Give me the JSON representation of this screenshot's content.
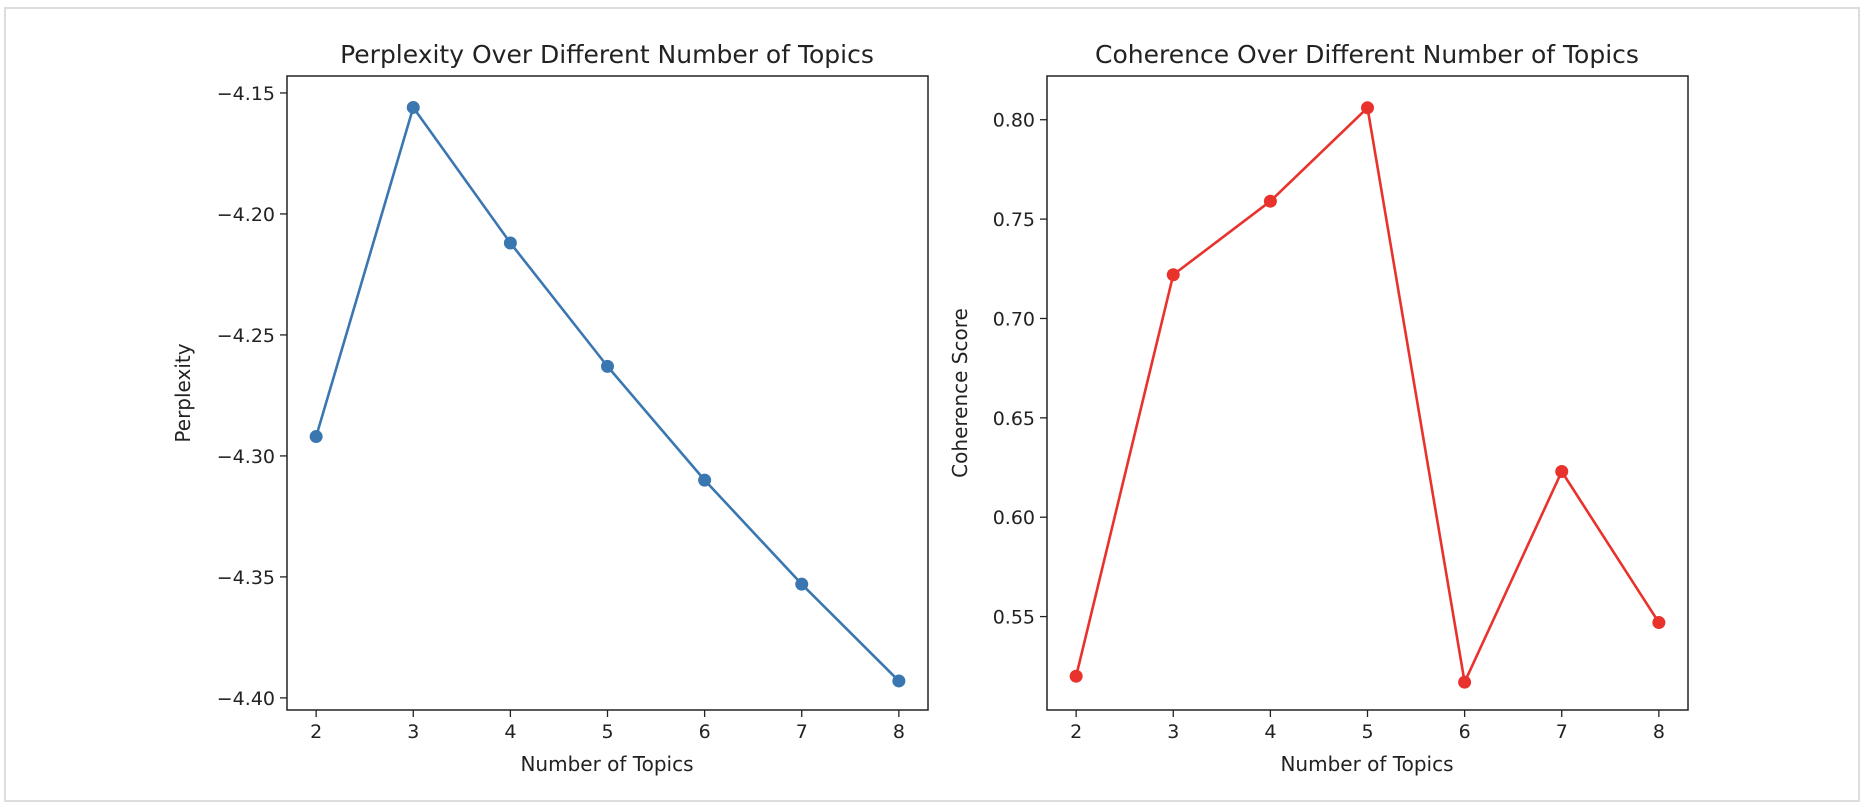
{
  "chart_data": [
    {
      "type": "line",
      "title": "Perplexity Over Different Number of Topics",
      "xlabel": "Number of Topics",
      "ylabel": "Perplexity",
      "x": [
        2,
        3,
        4,
        5,
        6,
        7,
        8
      ],
      "xlim": [
        1.7,
        8.3
      ],
      "ylim": [
        -4.405,
        -4.143
      ],
      "xticks": [
        2,
        3,
        4,
        5,
        6,
        7,
        8
      ],
      "yticks": [
        -4.15,
        -4.2,
        -4.25,
        -4.3,
        -4.35,
        -4.4
      ],
      "ytick_labels": [
        "−4.15",
        "−4.20",
        "−4.25",
        "−4.30",
        "−4.35",
        "−4.40"
      ],
      "grid": false,
      "series": [
        {
          "color": "#3a77b1",
          "marker": "circle",
          "values": [
            -4.292,
            -4.156,
            -4.212,
            -4.263,
            -4.31,
            -4.353,
            -4.393
          ]
        }
      ]
    },
    {
      "type": "line",
      "title": "Coherence Over Different Number of Topics",
      "xlabel": "Number of Topics",
      "ylabel": "Coherence Score",
      "x": [
        2,
        3,
        4,
        5,
        6,
        7,
        8
      ],
      "xlim": [
        1.7,
        8.3
      ],
      "ylim": [
        0.503,
        0.822
      ],
      "xticks": [
        2,
        3,
        4,
        5,
        6,
        7,
        8
      ],
      "yticks": [
        0.55,
        0.6,
        0.65,
        0.7,
        0.75,
        0.8
      ],
      "ytick_labels": [
        "0.55",
        "0.60",
        "0.65",
        "0.70",
        "0.75",
        "0.80"
      ],
      "grid": false,
      "series": [
        {
          "color": "#e8322b",
          "marker": "circle",
          "values": [
            0.52,
            0.722,
            0.759,
            0.806,
            0.517,
            0.623,
            0.547
          ]
        }
      ]
    }
  ]
}
